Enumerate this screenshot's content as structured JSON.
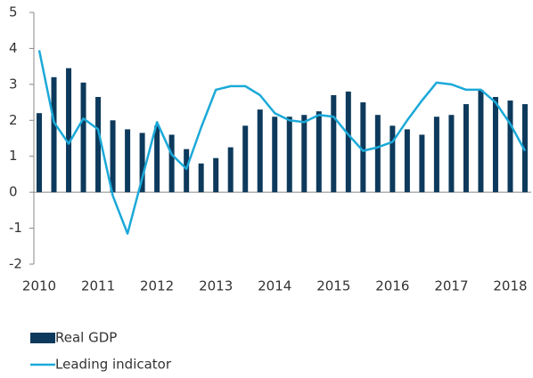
{
  "chart_data": {
    "type": "bar-line",
    "categories": [
      "2010",
      null,
      null,
      null,
      "2011",
      null,
      null,
      null,
      "2012",
      null,
      null,
      null,
      "2013",
      null,
      null,
      null,
      "2014",
      null,
      null,
      null,
      "2015",
      null,
      null,
      null,
      "2016",
      null,
      null,
      null,
      "2017",
      null,
      null,
      null,
      "2018",
      null
    ],
    "series": [
      {
        "name": "Real GDP",
        "type": "bar",
        "color": "#0d3a5c",
        "values": [
          2.2,
          3.2,
          3.45,
          3.05,
          2.65,
          2.0,
          1.75,
          1.65,
          1.85,
          1.6,
          1.2,
          0.8,
          0.95,
          1.25,
          1.85,
          2.3,
          2.1,
          2.1,
          2.15,
          2.25,
          2.7,
          2.8,
          2.5,
          2.15,
          1.85,
          1.75,
          1.6,
          2.1,
          2.15,
          2.45,
          2.85,
          2.65,
          2.55,
          2.45
        ]
      },
      {
        "name": "Leading indicator",
        "type": "line",
        "color": "#1ba9d8",
        "values": [
          3.95,
          1.95,
          1.35,
          2.05,
          1.75,
          -0.1,
          -1.15,
          0.4,
          1.95,
          1.05,
          0.65,
          1.8,
          2.85,
          2.95,
          2.95,
          2.7,
          2.2,
          2.0,
          1.95,
          2.15,
          2.1,
          1.6,
          1.15,
          1.25,
          1.4,
          2.0,
          2.55,
          3.05,
          3.0,
          2.85,
          2.85,
          2.5,
          1.9,
          1.15
        ]
      }
    ],
    "ylim": [
      -2,
      5
    ],
    "yticks": [
      -2,
      -1,
      0,
      1,
      2,
      3,
      4,
      5
    ],
    "grid": false,
    "legend": "bottom-left"
  }
}
